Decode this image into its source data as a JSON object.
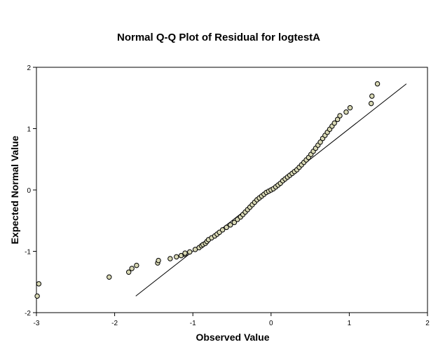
{
  "chart_data": {
    "type": "scatter",
    "title": "Normal Q-Q Plot of Residual for logtestA",
    "xlabel": "Observed Value",
    "ylabel": "Expected Normal Value",
    "xlim": [
      -3,
      2
    ],
    "ylim": [
      -2,
      2
    ],
    "xticks": [
      -3,
      -2,
      -1,
      0,
      1,
      2
    ],
    "yticks": [
      -2,
      -1,
      0,
      1,
      2
    ],
    "xtick_labels": [
      "-3",
      "-2",
      "-1",
      "0",
      "1",
      "2"
    ],
    "ytick_labels": [
      "-2",
      "-1",
      "0",
      "1",
      "2"
    ],
    "grid": false,
    "legend": "none",
    "reference_line": {
      "x": [
        -1.73,
        1.73
      ],
      "y": [
        -1.73,
        1.73
      ]
    },
    "colors": {
      "marker_fill": "#d8d8b4",
      "marker_stroke": "#000000",
      "line": "#000000"
    },
    "points": {
      "x": [
        -2.99,
        -2.97,
        -2.07,
        -1.82,
        -1.78,
        -1.72,
        -1.45,
        -1.44,
        -1.29,
        -1.21,
        -1.15,
        -1.1,
        -1.1,
        -1.04,
        -0.97,
        -0.92,
        -0.89,
        -0.87,
        -0.84,
        -0.82,
        -0.8,
        -0.76,
        -0.72,
        -0.69,
        -0.66,
        -0.62,
        -0.57,
        -0.52,
        -0.47,
        -0.43,
        -0.39,
        -0.36,
        -0.33,
        -0.3,
        -0.27,
        -0.24,
        -0.21,
        -0.18,
        -0.15,
        -0.12,
        -0.09,
        -0.06,
        -0.03,
        0.0,
        0.03,
        0.06,
        0.09,
        0.12,
        0.15,
        0.18,
        0.21,
        0.24,
        0.27,
        0.3,
        0.33,
        0.36,
        0.39,
        0.42,
        0.45,
        0.48,
        0.51,
        0.54,
        0.57,
        0.6,
        0.63,
        0.66,
        0.69,
        0.72,
        0.75,
        0.78,
        0.81,
        0.85,
        0.88,
        0.96,
        1.01,
        1.28,
        1.29,
        1.36
      ],
      "y": [
        -1.73,
        -1.53,
        -1.42,
        -1.34,
        -1.28,
        -1.23,
        -1.19,
        -1.15,
        -1.12,
        -1.09,
        -1.07,
        -1.05,
        -1.03,
        -1.01,
        -0.97,
        -0.94,
        -0.91,
        -0.89,
        -0.87,
        -0.84,
        -0.81,
        -0.78,
        -0.75,
        -0.72,
        -0.69,
        -0.65,
        -0.61,
        -0.57,
        -0.53,
        -0.48,
        -0.44,
        -0.4,
        -0.36,
        -0.32,
        -0.28,
        -0.24,
        -0.2,
        -0.16,
        -0.13,
        -0.1,
        -0.07,
        -0.04,
        -0.02,
        0.0,
        0.02,
        0.05,
        0.08,
        0.11,
        0.15,
        0.18,
        0.21,
        0.24,
        0.27,
        0.3,
        0.33,
        0.37,
        0.41,
        0.45,
        0.49,
        0.53,
        0.58,
        0.63,
        0.68,
        0.73,
        0.78,
        0.84,
        0.89,
        0.94,
        0.99,
        1.04,
        1.09,
        1.15,
        1.21,
        1.27,
        1.34,
        1.41,
        1.53,
        1.73
      ]
    }
  }
}
